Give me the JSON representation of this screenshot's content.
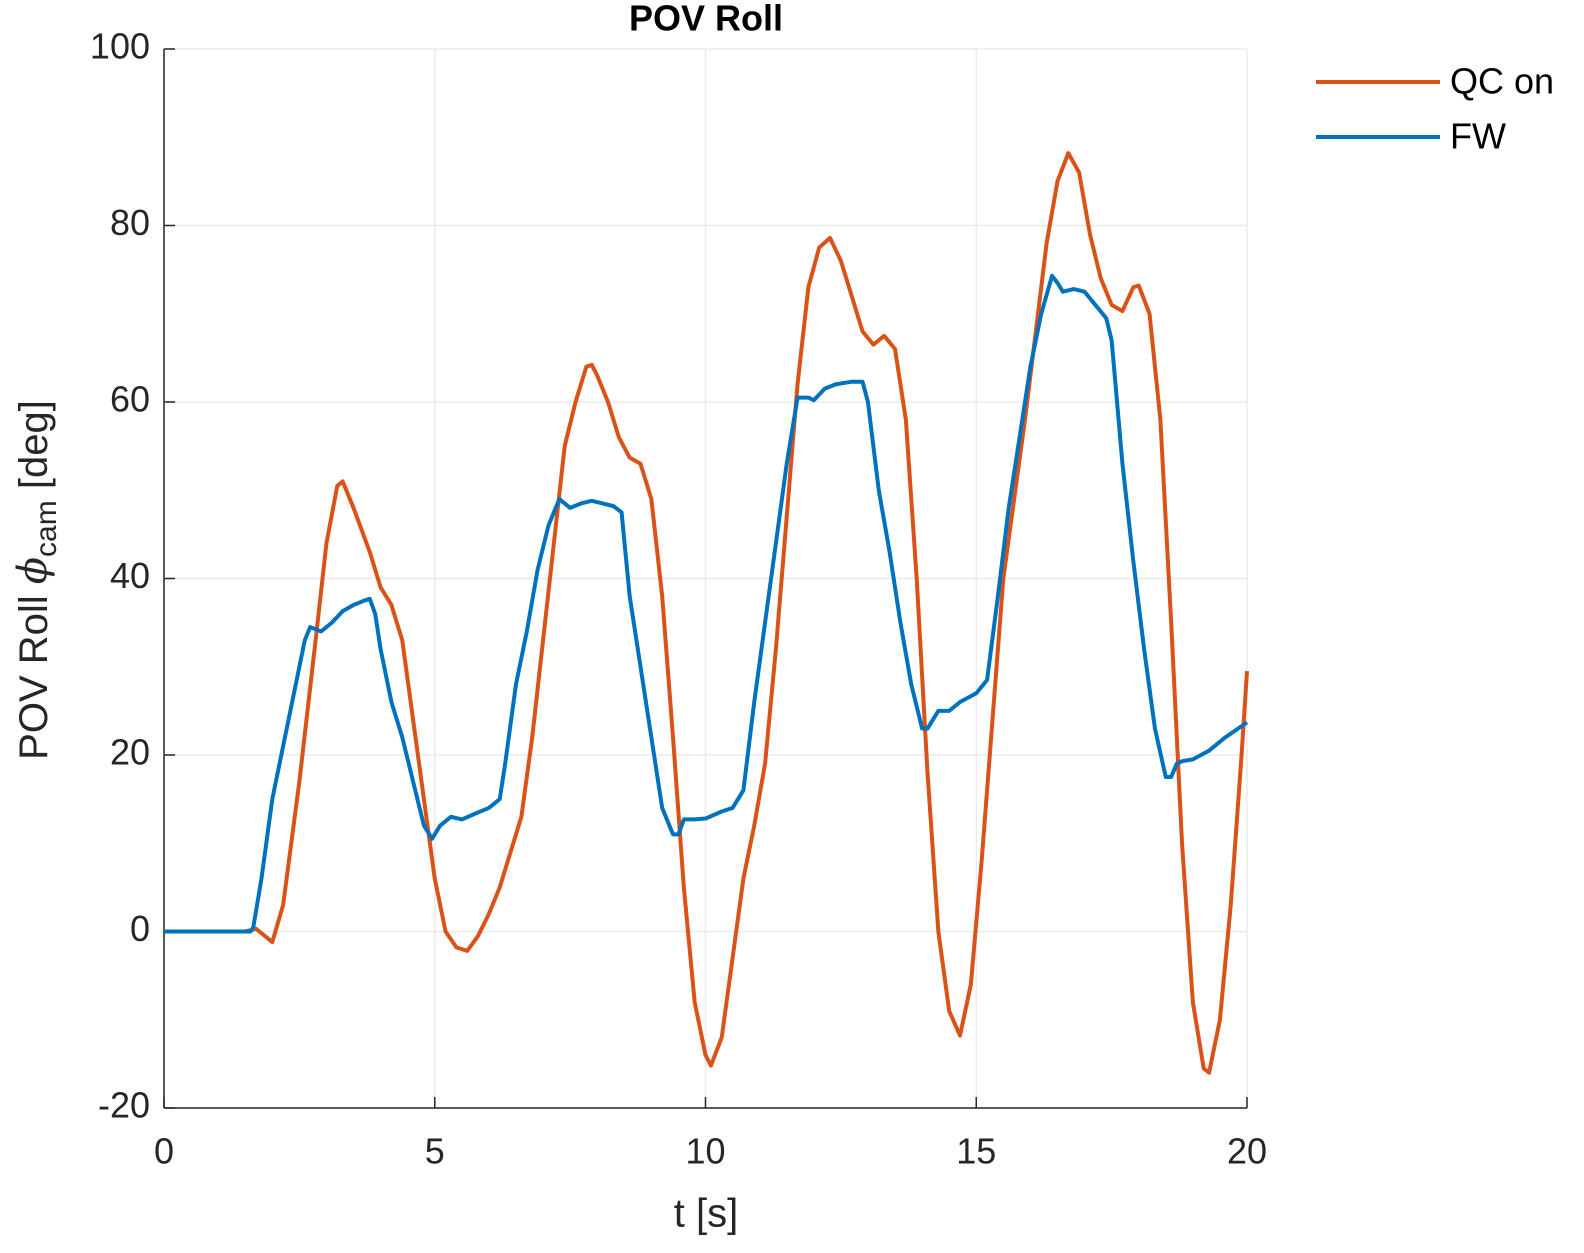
{
  "chart_data": {
    "type": "line",
    "title": "POV Roll",
    "xlabel": "t [s]",
    "ylabel": {
      "text": "POV Roll",
      "symbol": "ϕ",
      "subscript": "cam",
      "unit": "[deg]"
    },
    "xlim": [
      0,
      20
    ],
    "xticks": [
      0,
      5,
      10,
      15,
      20
    ],
    "ylim": [
      -20,
      100
    ],
    "yticks": [
      -20,
      0,
      20,
      40,
      60,
      80,
      100
    ],
    "grid": true,
    "legend": "outside-northeast",
    "series": [
      {
        "name": "QC on",
        "color": "#D95319",
        "x": [
          0,
          1.5,
          1.7,
          2.0,
          2.2,
          2.5,
          2.8,
          3.0,
          3.2,
          3.3,
          3.5,
          3.8,
          4.0,
          4.2,
          4.4,
          4.6,
          4.8,
          5.0,
          5.2,
          5.4,
          5.6,
          5.8,
          6.0,
          6.2,
          6.4,
          6.6,
          6.8,
          7.0,
          7.2,
          7.4,
          7.6,
          7.8,
          7.9,
          8.0,
          8.2,
          8.4,
          8.6,
          8.8,
          9.0,
          9.2,
          9.4,
          9.6,
          9.8,
          10.0,
          10.1,
          10.3,
          10.5,
          10.7,
          10.9,
          11.1,
          11.3,
          11.5,
          11.7,
          11.9,
          12.1,
          12.3,
          12.5,
          12.7,
          12.9,
          13.1,
          13.3,
          13.5,
          13.7,
          13.9,
          14.1,
          14.3,
          14.5,
          14.7,
          14.9,
          15.1,
          15.3,
          15.5,
          15.7,
          15.9,
          16.1,
          16.3,
          16.5,
          16.7,
          16.9,
          17.1,
          17.3,
          17.5,
          17.7,
          17.9,
          18.0,
          18.2,
          18.4,
          18.6,
          18.8,
          19.0,
          19.2,
          19.3,
          19.5,
          19.7,
          19.9,
          20.0
        ],
        "values": [
          0,
          0,
          0.3,
          -1.2,
          3,
          17,
          33,
          44,
          50.5,
          51,
          48,
          43,
          39,
          37,
          33,
          24,
          15,
          6,
          0,
          -1.8,
          -2.2,
          -0.5,
          2,
          5,
          9,
          13,
          22,
          33,
          44,
          55,
          60,
          64,
          64.2,
          63,
          60,
          56,
          53.7,
          53,
          49,
          38,
          22,
          5,
          -8,
          -14,
          -15.2,
          -12,
          -3,
          6,
          12,
          19,
          32,
          47,
          62,
          73,
          77.5,
          78.6,
          76,
          72,
          68,
          66.5,
          67.5,
          66,
          58,
          40,
          18,
          0,
          -9,
          -11.8,
          -6,
          8,
          24,
          40,
          49,
          58,
          68,
          78,
          85,
          88.2,
          86,
          79,
          74,
          71,
          70.3,
          73,
          73.2,
          70,
          58,
          35,
          10,
          -8,
          -15.5,
          -16,
          -10,
          3,
          20,
          29.5
        ]
      },
      {
        "name": "FW",
        "color": "#0072BD",
        "x": [
          0,
          1.6,
          1.65,
          1.8,
          2.0,
          2.2,
          2.4,
          2.6,
          2.7,
          2.9,
          3.1,
          3.3,
          3.5,
          3.7,
          3.8,
          3.9,
          4.0,
          4.2,
          4.4,
          4.6,
          4.8,
          4.95,
          5.1,
          5.3,
          5.5,
          5.8,
          6.0,
          6.2,
          6.3,
          6.5,
          6.7,
          6.9,
          7.1,
          7.3,
          7.5,
          7.7,
          7.9,
          8.1,
          8.3,
          8.45,
          8.6,
          8.8,
          9.0,
          9.2,
          9.4,
          9.5,
          9.6,
          9.8,
          10.0,
          10.3,
          10.5,
          10.7,
          10.9,
          11.1,
          11.3,
          11.5,
          11.7,
          11.9,
          12.0,
          12.2,
          12.4,
          12.7,
          12.9,
          13.0,
          13.2,
          13.4,
          13.6,
          13.8,
          14.0,
          14.1,
          14.3,
          14.5,
          14.7,
          15.0,
          15.2,
          15.4,
          15.6,
          15.8,
          16.0,
          16.2,
          16.4,
          16.5,
          16.6,
          16.8,
          17.0,
          17.2,
          17.4,
          17.5,
          17.7,
          17.9,
          18.1,
          18.3,
          18.5,
          18.6,
          18.7,
          18.8,
          19.0,
          19.3,
          19.6,
          20.0
        ],
        "values": [
          0,
          0,
          0.5,
          6,
          15,
          21,
          27,
          33,
          34.5,
          34,
          35,
          36.3,
          37,
          37.5,
          37.7,
          36,
          32,
          26,
          22,
          17,
          12,
          10.5,
          12,
          13,
          12.7,
          13.5,
          14,
          15,
          19,
          28,
          34,
          41,
          46,
          49,
          48,
          48.5,
          48.8,
          48.5,
          48.2,
          47.5,
          38,
          30,
          22,
          14,
          11,
          11,
          12.7,
          12.7,
          12.8,
          13.6,
          14,
          16,
          26,
          35,
          44,
          53,
          60.5,
          60.5,
          60.2,
          61.5,
          62,
          62.3,
          62.3,
          60,
          50,
          43,
          35,
          28,
          23,
          23,
          25,
          25,
          26,
          27,
          28.5,
          38,
          48,
          56,
          64,
          70,
          74.3,
          73.5,
          72.5,
          72.8,
          72.5,
          71,
          69.5,
          67,
          53,
          42,
          32,
          23,
          17.5,
          17.5,
          19,
          19.3,
          19.5,
          20.5,
          22,
          23.7
        ]
      }
    ]
  }
}
